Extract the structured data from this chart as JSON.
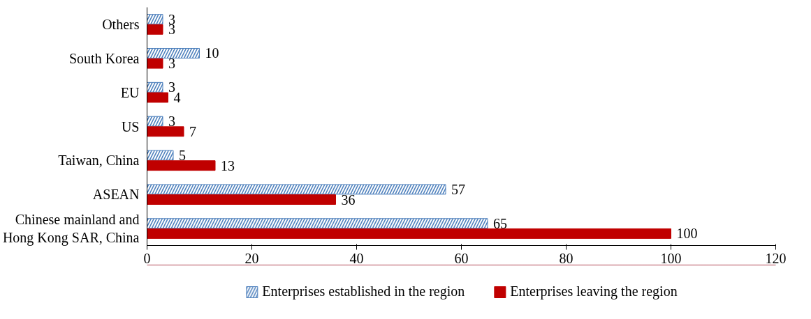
{
  "chart_data": {
    "type": "bar",
    "orientation": "horizontal",
    "categories": [
      "Others",
      "South Korea",
      "EU",
      "US",
      "Taiwan, China",
      "ASEAN",
      "Chinese mainland and\nHong Kong SAR, China"
    ],
    "series": [
      {
        "name": "Enterprises established in the region",
        "color": "#4f81bd",
        "values": [
          3,
          10,
          3,
          3,
          5,
          57,
          65
        ]
      },
      {
        "name": "Enterprises leaving the region",
        "color": "#c00000",
        "values": [
          3,
          3,
          4,
          7,
          13,
          36,
          100
        ]
      }
    ],
    "xlim": [
      0,
      120
    ],
    "xticks": [
      0,
      20,
      40,
      60,
      80,
      100,
      120
    ],
    "data_labels": true,
    "legend": "bottom",
    "grid": false
  }
}
